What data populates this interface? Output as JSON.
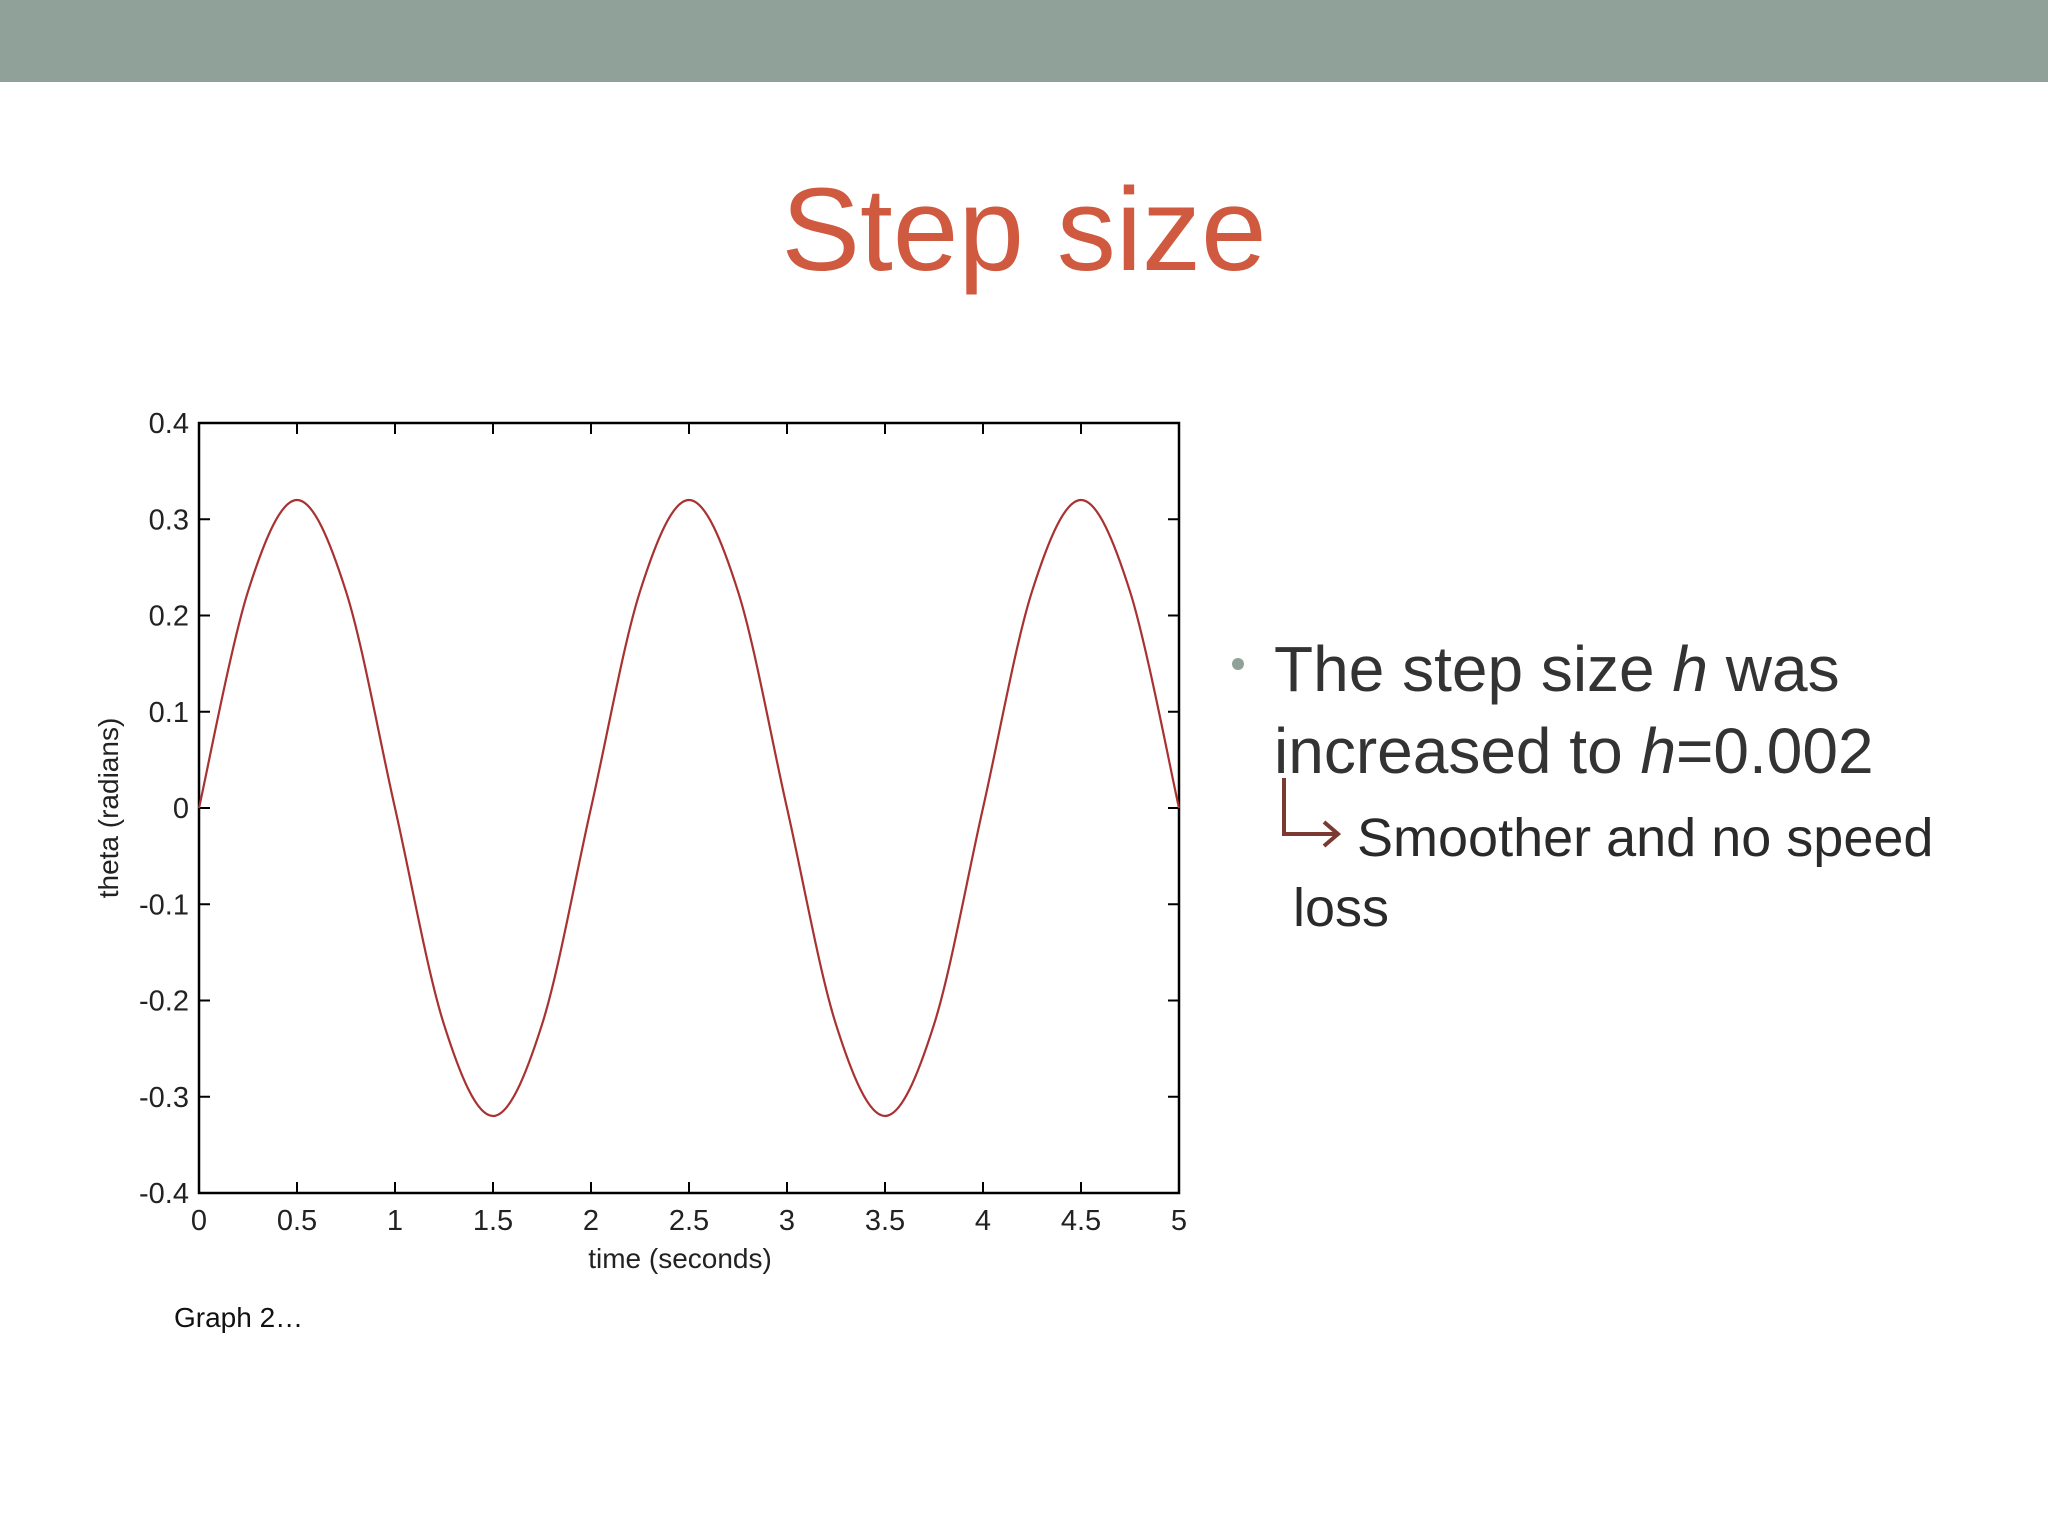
{
  "slide": {
    "title": "Step size",
    "caption": "Graph 2…",
    "colors": {
      "band": "#8fa199",
      "title": "#d05a40",
      "bullet_dot": "#8fa199",
      "arrow": "#7a3a32",
      "line": "#a83232"
    }
  },
  "bullet": {
    "line1_pre": "The step size ",
    "line1_var": "h",
    "line1_post": " was",
    "line2_pre": "increased to ",
    "line2_var": "h",
    "line2_post": "=0.002",
    "sub": "Smoother and no speed loss"
  },
  "chart_data": {
    "type": "line",
    "title": "",
    "xlabel": "time (seconds)",
    "ylabel": "theta (radians)",
    "xlim": [
      0,
      5
    ],
    "ylim": [
      -0.4,
      0.4
    ],
    "x_ticks": [
      "0",
      "0.5",
      "1",
      "1.5",
      "2",
      "2.5",
      "3",
      "3.5",
      "4",
      "4.5",
      "5"
    ],
    "y_ticks": [
      "0.4",
      "0.3",
      "0.2",
      "0.1",
      "0",
      "-0.1",
      "-0.2",
      "-0.3",
      "-0.4"
    ],
    "grid": false,
    "series": [
      {
        "x": [
          0,
          0.25,
          0.5,
          0.75,
          1.0,
          1.25,
          1.5,
          1.75,
          2.0,
          2.25,
          2.5,
          2.75,
          3.0,
          3.25,
          3.5,
          3.75,
          4.0,
          4.25,
          4.5,
          4.75,
          5.0
        ],
        "y": [
          0,
          0.225,
          0.32,
          0.225,
          0,
          -0.225,
          -0.32,
          -0.225,
          0,
          0.225,
          0.32,
          0.225,
          0,
          -0.225,
          -0.32,
          -0.225,
          0,
          0.225,
          0.32,
          0.225,
          0
        ]
      }
    ]
  }
}
